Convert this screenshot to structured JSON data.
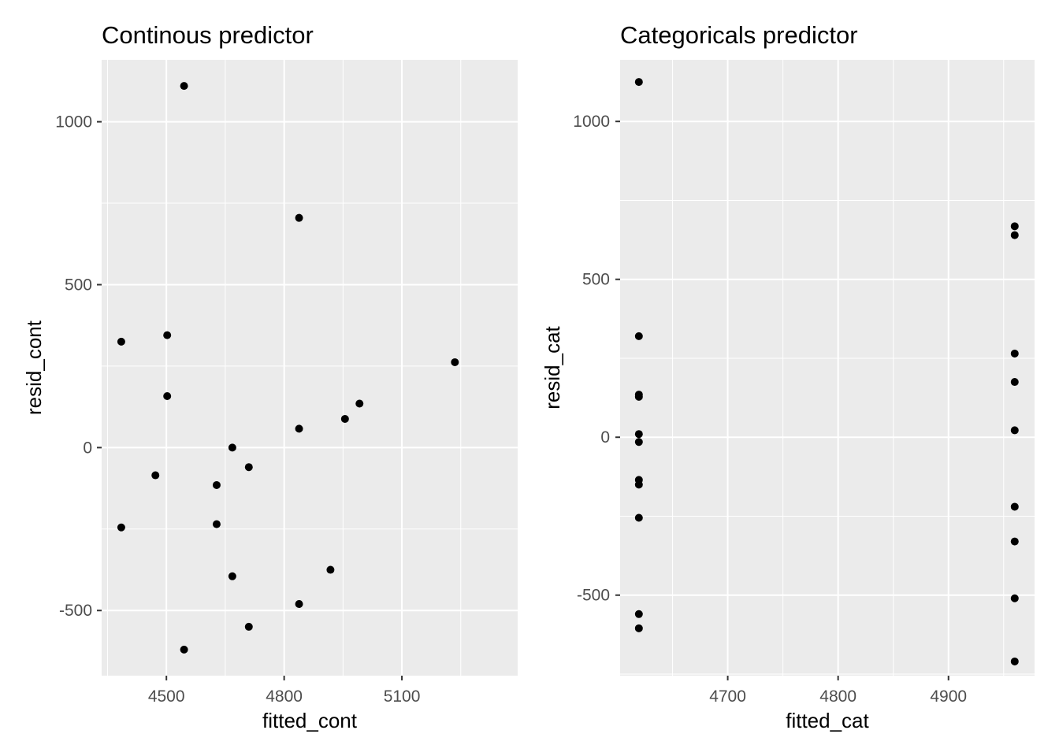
{
  "chart_data": [
    {
      "type": "scatter",
      "title": "Continous predictor",
      "xlabel": "fitted_cont",
      "ylabel": "resid_cont",
      "xlim": [
        4335,
        5395
      ],
      "ylim": [
        -700,
        1190
      ],
      "xticks": [
        4500,
        4800,
        5100
      ],
      "xticks_minor": [
        4350,
        4650,
        4950,
        5250
      ],
      "yticks": [
        -500,
        0,
        500,
        1000
      ],
      "yticks_minor": [
        -250,
        250,
        750
      ],
      "tick_labels_x": [
        "4500",
        "4800",
        "5100"
      ],
      "tick_labels_y": [
        "-500",
        "0",
        "500",
        "1000"
      ],
      "grid": true,
      "background": "#ebebeb",
      "point_color": "#000000",
      "points": [
        {
          "x": 4385,
          "y": 325
        },
        {
          "x": 4385,
          "y": -245
        },
        {
          "x": 4545,
          "y": 1110
        },
        {
          "x": 4545,
          "y": -620
        },
        {
          "x": 4502,
          "y": 345
        },
        {
          "x": 4502,
          "y": 158
        },
        {
          "x": 4472,
          "y": -85
        },
        {
          "x": 4668,
          "y": 0
        },
        {
          "x": 4668,
          "y": -395
        },
        {
          "x": 4628,
          "y": -115
        },
        {
          "x": 4628,
          "y": -235
        },
        {
          "x": 4710,
          "y": -60
        },
        {
          "x": 4710,
          "y": -550
        },
        {
          "x": 4838,
          "y": 705
        },
        {
          "x": 4838,
          "y": 58
        },
        {
          "x": 4838,
          "y": -480
        },
        {
          "x": 4918,
          "y": -375
        },
        {
          "x": 4955,
          "y": 88
        },
        {
          "x": 4992,
          "y": 135
        },
        {
          "x": 5235,
          "y": 262
        }
      ]
    },
    {
      "type": "scatter",
      "title": "Categoricals predictor",
      "xlabel": "fitted_cat",
      "ylabel": "resid_cat",
      "xlim": [
        4602.5,
        4978
      ],
      "ylim": [
        -755,
        1195
      ],
      "xticks": [
        4700,
        4800,
        4900
      ],
      "xticks_minor": [
        4650,
        4750,
        4850,
        4950
      ],
      "yticks": [
        -500,
        0,
        500,
        1000
      ],
      "yticks_minor": [
        -750,
        -250,
        250,
        750
      ],
      "tick_labels_x": [
        "4700",
        "4800",
        "4900"
      ],
      "tick_labels_y": [
        "-500",
        "0",
        "500",
        "1000"
      ],
      "grid": true,
      "background": "#ebebeb",
      "point_color": "#000000",
      "points": [
        {
          "x": 4619.5,
          "y": 1125
        },
        {
          "x": 4619.5,
          "y": 320
        },
        {
          "x": 4619.5,
          "y": 135
        },
        {
          "x": 4619.5,
          "y": 128
        },
        {
          "x": 4619.5,
          "y": 10
        },
        {
          "x": 4619.5,
          "y": -15
        },
        {
          "x": 4619.5,
          "y": -135
        },
        {
          "x": 4619.5,
          "y": -150
        },
        {
          "x": 4619.5,
          "y": -255
        },
        {
          "x": 4619.5,
          "y": -560
        },
        {
          "x": 4619.5,
          "y": -605
        },
        {
          "x": 4960,
          "y": 668
        },
        {
          "x": 4960,
          "y": 640
        },
        {
          "x": 4960,
          "y": 265
        },
        {
          "x": 4960,
          "y": 175
        },
        {
          "x": 4960,
          "y": 22
        },
        {
          "x": 4960,
          "y": -220
        },
        {
          "x": 4960,
          "y": -330
        },
        {
          "x": 4960,
          "y": -510
        },
        {
          "x": 4960,
          "y": -710
        }
      ]
    }
  ]
}
